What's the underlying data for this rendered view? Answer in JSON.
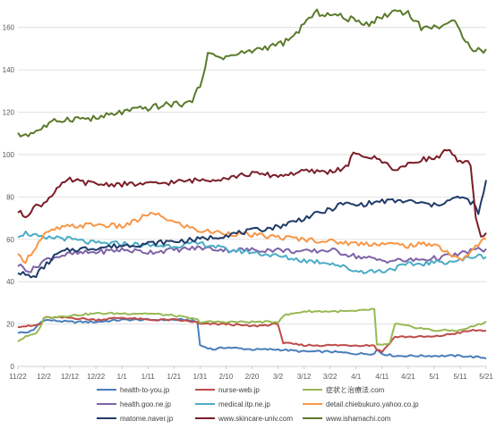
{
  "chart_data": {
    "type": "line",
    "title": "",
    "xlabel": "",
    "ylabel": "",
    "ylim": [
      0,
      170
    ],
    "yticks": [
      0,
      20,
      40,
      60,
      80,
      100,
      120,
      140,
      160
    ],
    "x_tick_labels": [
      "11/22",
      "12/2",
      "12/12",
      "12/22",
      "1/1",
      "1/11",
      "1/21",
      "1/31",
      "2/10",
      "2/20",
      "3/2",
      "3/12",
      "3/22",
      "4/1",
      "4/11",
      "4/21",
      "5/1",
      "5/11",
      "5/21"
    ],
    "grid": true,
    "legend_position": "bottom",
    "series": [
      {
        "name": "health-to-you.jp",
        "color": "#4a7ebb",
        "points": [
          [
            0,
            16
          ],
          [
            3,
            16
          ],
          [
            6,
            17
          ],
          [
            8,
            20
          ],
          [
            10,
            22
          ],
          [
            20,
            21
          ],
          [
            30,
            21
          ],
          [
            40,
            22
          ],
          [
            50,
            22
          ],
          [
            60,
            22
          ],
          [
            65,
            22
          ],
          [
            69,
            21
          ],
          [
            70,
            10
          ],
          [
            75,
            8
          ],
          [
            80,
            9
          ],
          [
            90,
            8
          ],
          [
            100,
            8
          ],
          [
            110,
            7
          ],
          [
            120,
            7
          ],
          [
            130,
            6
          ],
          [
            137,
            6
          ],
          [
            138,
            8
          ],
          [
            140,
            6
          ],
          [
            145,
            5
          ],
          [
            150,
            5
          ],
          [
            160,
            5
          ],
          [
            170,
            5
          ],
          [
            180,
            4
          ]
        ]
      },
      {
        "name": "nurse-web.jp",
        "color": "#be4b48",
        "points": [
          [
            0,
            19
          ],
          [
            5,
            19
          ],
          [
            9,
            20
          ],
          [
            10,
            23
          ],
          [
            20,
            23
          ],
          [
            30,
            22
          ],
          [
            40,
            23
          ],
          [
            50,
            22
          ],
          [
            60,
            22
          ],
          [
            68,
            21
          ],
          [
            70,
            20
          ],
          [
            80,
            20
          ],
          [
            90,
            19
          ],
          [
            100,
            20
          ],
          [
            102,
            11
          ],
          [
            110,
            10
          ],
          [
            120,
            10
          ],
          [
            130,
            10
          ],
          [
            137,
            10
          ],
          [
            138,
            8
          ],
          [
            140,
            7
          ],
          [
            145,
            14
          ],
          [
            150,
            14
          ],
          [
            160,
            14
          ],
          [
            170,
            16
          ],
          [
            175,
            17
          ],
          [
            180,
            17
          ]
        ]
      },
      {
        "name": "症状と治療法.com",
        "color": "#98b954",
        "points": [
          [
            0,
            12
          ],
          [
            3,
            14
          ],
          [
            6,
            15
          ],
          [
            8,
            17
          ],
          [
            10,
            23
          ],
          [
            20,
            24
          ],
          [
            30,
            25
          ],
          [
            40,
            25
          ],
          [
            50,
            25
          ],
          [
            60,
            24
          ],
          [
            65,
            23
          ],
          [
            69,
            22
          ],
          [
            70,
            21
          ],
          [
            80,
            21
          ],
          [
            90,
            21
          ],
          [
            100,
            21
          ],
          [
            102,
            24
          ],
          [
            110,
            26
          ],
          [
            120,
            26
          ],
          [
            130,
            26
          ],
          [
            136,
            27
          ],
          [
            137,
            27
          ],
          [
            138,
            10
          ],
          [
            140,
            10
          ],
          [
            143,
            11
          ],
          [
            145,
            20
          ],
          [
            150,
            19
          ],
          [
            160,
            17
          ],
          [
            170,
            17
          ],
          [
            175,
            19
          ],
          [
            180,
            21
          ]
        ]
      },
      {
        "name": "health.goo.ne.jp",
        "color": "#7e63a6",
        "points": [
          [
            0,
            48
          ],
          [
            5,
            45
          ],
          [
            10,
            50
          ],
          [
            15,
            52
          ],
          [
            20,
            53
          ],
          [
            30,
            54
          ],
          [
            40,
            55
          ],
          [
            50,
            54
          ],
          [
            60,
            55
          ],
          [
            70,
            56
          ],
          [
            80,
            55
          ],
          [
            90,
            55
          ],
          [
            100,
            55
          ],
          [
            110,
            54
          ],
          [
            120,
            55
          ],
          [
            130,
            52
          ],
          [
            140,
            50
          ],
          [
            150,
            50
          ],
          [
            160,
            51
          ],
          [
            165,
            52
          ],
          [
            170,
            53
          ],
          [
            175,
            55
          ],
          [
            180,
            55
          ]
        ]
      },
      {
        "name": "medical.itp.ne.jp",
        "color": "#4bacc6",
        "points": [
          [
            0,
            62
          ],
          [
            3,
            63
          ],
          [
            6,
            62
          ],
          [
            10,
            60
          ],
          [
            15,
            61
          ],
          [
            20,
            60
          ],
          [
            30,
            58
          ],
          [
            40,
            58
          ],
          [
            50,
            57
          ],
          [
            60,
            57
          ],
          [
            70,
            58
          ],
          [
            75,
            57
          ],
          [
            80,
            55
          ],
          [
            90,
            54
          ],
          [
            100,
            52
          ],
          [
            110,
            50
          ],
          [
            120,
            49
          ],
          [
            130,
            45
          ],
          [
            140,
            45
          ],
          [
            150,
            48
          ],
          [
            160,
            49
          ],
          [
            170,
            50
          ],
          [
            175,
            52
          ],
          [
            180,
            52
          ]
        ]
      },
      {
        "name": "detail.chiebukuro.yahoo.co.jp",
        "color": "#f79646",
        "points": [
          [
            0,
            52
          ],
          [
            3,
            50
          ],
          [
            6,
            55
          ],
          [
            10,
            62
          ],
          [
            15,
            65
          ],
          [
            20,
            66
          ],
          [
            30,
            67
          ],
          [
            40,
            66
          ],
          [
            46,
            69
          ],
          [
            50,
            72
          ],
          [
            55,
            71
          ],
          [
            60,
            68
          ],
          [
            70,
            64
          ],
          [
            80,
            63
          ],
          [
            90,
            62
          ],
          [
            100,
            61
          ],
          [
            110,
            60
          ],
          [
            120,
            59
          ],
          [
            130,
            58
          ],
          [
            140,
            58
          ],
          [
            150,
            57
          ],
          [
            160,
            58
          ],
          [
            170,
            50
          ],
          [
            175,
            55
          ],
          [
            180,
            61
          ]
        ]
      },
      {
        "name": "matome.naver.jp",
        "color": "#1f3b68",
        "points": [
          [
            0,
            45
          ],
          [
            3,
            43
          ],
          [
            6,
            42
          ],
          [
            10,
            47
          ],
          [
            15,
            53
          ],
          [
            20,
            55
          ],
          [
            30,
            56
          ],
          [
            40,
            57
          ],
          [
            50,
            58
          ],
          [
            60,
            59
          ],
          [
            70,
            60
          ],
          [
            80,
            62
          ],
          [
            90,
            64
          ],
          [
            100,
            66
          ],
          [
            110,
            70
          ],
          [
            120,
            74
          ],
          [
            125,
            77
          ],
          [
            130,
            76
          ],
          [
            140,
            78
          ],
          [
            150,
            78
          ],
          [
            160,
            76
          ],
          [
            165,
            78
          ],
          [
            170,
            80
          ],
          [
            175,
            77
          ],
          [
            177,
            72
          ],
          [
            180,
            87
          ]
        ]
      },
      {
        "name": "www.skincare-univ.com",
        "color": "#7a1e28",
        "points": [
          [
            0,
            73
          ],
          [
            3,
            71
          ],
          [
            6,
            75
          ],
          [
            10,
            77
          ],
          [
            15,
            84
          ],
          [
            20,
            88
          ],
          [
            30,
            86
          ],
          [
            40,
            86
          ],
          [
            50,
            86
          ],
          [
            60,
            87
          ],
          [
            70,
            88
          ],
          [
            80,
            89
          ],
          [
            90,
            91
          ],
          [
            100,
            90
          ],
          [
            110,
            92
          ],
          [
            120,
            92
          ],
          [
            127,
            94
          ],
          [
            128,
            100
          ],
          [
            135,
            99
          ],
          [
            140,
            97
          ],
          [
            145,
            93
          ],
          [
            150,
            95
          ],
          [
            155,
            98
          ],
          [
            160,
            98
          ],
          [
            165,
            102
          ],
          [
            170,
            96
          ],
          [
            174,
            96
          ],
          [
            176,
            70
          ],
          [
            178,
            62
          ],
          [
            180,
            62
          ]
        ]
      },
      {
        "name": "www.ishamachi.com",
        "color": "#5b7a2b",
        "points": [
          [
            0,
            109
          ],
          [
            5,
            110
          ],
          [
            10,
            113
          ],
          [
            15,
            116
          ],
          [
            20,
            117
          ],
          [
            30,
            117
          ],
          [
            40,
            120
          ],
          [
            50,
            122
          ],
          [
            60,
            124
          ],
          [
            65,
            124
          ],
          [
            68,
            127
          ],
          [
            70,
            133
          ],
          [
            73,
            147
          ],
          [
            80,
            146
          ],
          [
            90,
            149
          ],
          [
            100,
            152
          ],
          [
            105,
            154
          ],
          [
            110,
            162
          ],
          [
            115,
            167
          ],
          [
            120,
            166
          ],
          [
            125,
            165
          ],
          [
            130,
            163
          ],
          [
            135,
            162
          ],
          [
            140,
            165
          ],
          [
            145,
            168
          ],
          [
            150,
            167
          ],
          [
            155,
            160
          ],
          [
            160,
            160
          ],
          [
            165,
            162
          ],
          [
            168,
            162
          ],
          [
            170,
            158
          ],
          [
            173,
            153
          ],
          [
            175,
            150
          ],
          [
            180,
            149
          ]
        ]
      }
    ]
  }
}
